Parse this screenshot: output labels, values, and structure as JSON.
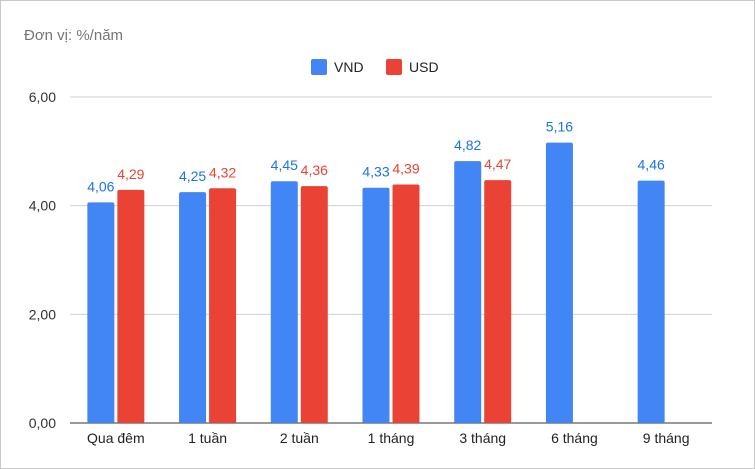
{
  "chart_data": {
    "type": "bar",
    "title": "",
    "subtitle": "Đơn vị: %/năm",
    "categories": [
      "Qua đêm",
      "1 tuần",
      "2 tuần",
      "1 tháng",
      "3 tháng",
      "6 tháng",
      "9 tháng"
    ],
    "series": [
      {
        "name": "VND",
        "color": "#4285f4",
        "label_color": "#1a73e8",
        "values": [
          4.06,
          4.25,
          4.45,
          4.33,
          4.82,
          5.16,
          4.46
        ],
        "labels": [
          "4,06",
          "4,25",
          "4,45",
          "4,33",
          "4,82",
          "5,16",
          "4,46"
        ]
      },
      {
        "name": "USD",
        "color": "#ea4335",
        "label_color": "#ea4335",
        "values": [
          4.29,
          4.32,
          4.36,
          4.39,
          4.47,
          null,
          null
        ],
        "labels": [
          "4,29",
          "4,32",
          "4,36",
          "4,39",
          "4,47",
          null,
          null
        ]
      }
    ],
    "ylim": [
      0,
      6
    ],
    "yticks": [
      0,
      2,
      4,
      6
    ],
    "ytick_labels": [
      "0,00",
      "2,00",
      "4,00",
      "6,00"
    ],
    "xlabel": "",
    "ylabel": "",
    "grid": true,
    "legend_position": "top-center"
  }
}
